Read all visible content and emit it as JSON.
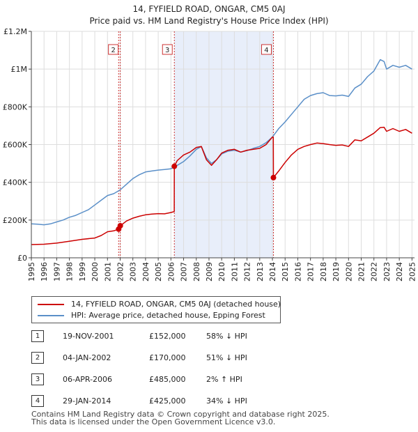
{
  "chart_data": {
    "type": "line",
    "title": "14, FYFIELD ROAD, ONGAR, CM5 0AJ",
    "subtitle": "Price paid vs. HM Land Registry's House Price Index (HPI)",
    "xlabel": "",
    "ylabel": "",
    "xlim": [
      1995,
      2025.2
    ],
    "ylim": [
      0,
      1200000
    ],
    "x_ticks": [
      "1995",
      "1996",
      "1997",
      "1998",
      "1999",
      "2000",
      "2001",
      "2002",
      "2003",
      "2004",
      "2005",
      "2006",
      "2007",
      "2008",
      "2009",
      "2010",
      "2011",
      "2012",
      "2013",
      "2014",
      "2015",
      "2016",
      "2017",
      "2018",
      "2019",
      "2020",
      "2021",
      "2022",
      "2023",
      "2024",
      "2025"
    ],
    "y_ticks": [
      {
        "value": 0,
        "label": "£0"
      },
      {
        "value": 200000,
        "label": "£200K"
      },
      {
        "value": 400000,
        "label": "£400K"
      },
      {
        "value": 600000,
        "label": "£600K"
      },
      {
        "value": 800000,
        "label": "£800K"
      },
      {
        "value": 1000000,
        "label": "£1M"
      },
      {
        "value": 1200000,
        "label": "£1.2M"
      }
    ],
    "grid": true,
    "shaded_period": [
      2006.27,
      2014.08
    ],
    "series": [
      {
        "name": "14, FYFIELD ROAD, ONGAR, CM5 0AJ (detached house)",
        "color": "#cc0000",
        "x": [
          1995.0,
          1996.0,
          1997.0,
          1998.0,
          1999.0,
          2000.0,
          2000.5,
          2001.0,
          2001.5,
          2001.88,
          2002.01,
          2002.5,
          2003.0,
          2003.5,
          2004.0,
          2004.5,
          2005.0,
          2005.5,
          2006.0,
          2006.26,
          2006.27,
          2006.5,
          2007.0,
          2007.5,
          2008.0,
          2008.4,
          2008.8,
          2009.2,
          2009.6,
          2010.0,
          2010.5,
          2011.0,
          2011.5,
          2012.0,
          2012.5,
          2013.0,
          2013.5,
          2014.0,
          2014.07,
          2014.08,
          2014.5,
          2015.0,
          2015.5,
          2016.0,
          2016.5,
          2017.0,
          2017.5,
          2018.0,
          2018.5,
          2019.0,
          2019.5,
          2020.0,
          2020.5,
          2021.0,
          2021.5,
          2022.0,
          2022.5,
          2022.8,
          2023.0,
          2023.5,
          2024.0,
          2024.5,
          2025.0
        ],
        "y": [
          70000,
          72000,
          78000,
          88000,
          98000,
          105000,
          118000,
          138000,
          143000,
          152000,
          170000,
          195000,
          210000,
          220000,
          228000,
          232000,
          234000,
          233000,
          240000,
          245000,
          485000,
          515000,
          545000,
          560000,
          585000,
          590000,
          520000,
          490000,
          520000,
          555000,
          570000,
          575000,
          560000,
          570000,
          575000,
          580000,
          600000,
          640000,
          640000,
          425000,
          460000,
          505000,
          545000,
          575000,
          590000,
          600000,
          608000,
          605000,
          600000,
          596000,
          598000,
          590000,
          625000,
          620000,
          640000,
          660000,
          690000,
          692000,
          670000,
          685000,
          670000,
          680000,
          660000
        ]
      },
      {
        "name": "HPI: Average price, detached house, Epping Forest",
        "color": "#5a8fc8",
        "x": [
          1995.0,
          1995.5,
          1996.0,
          1996.5,
          1997.0,
          1997.5,
          1998.0,
          1998.5,
          1999.0,
          1999.5,
          2000.0,
          2000.5,
          2001.0,
          2001.5,
          2002.0,
          2002.5,
          2003.0,
          2003.5,
          2004.0,
          2004.5,
          2005.0,
          2005.5,
          2006.0,
          2006.5,
          2007.0,
          2007.5,
          2008.0,
          2008.4,
          2008.8,
          2009.2,
          2009.6,
          2010.0,
          2010.5,
          2011.0,
          2011.5,
          2012.0,
          2012.5,
          2013.0,
          2013.5,
          2014.0,
          2014.5,
          2015.0,
          2015.5,
          2016.0,
          2016.5,
          2017.0,
          2017.5,
          2018.0,
          2018.5,
          2019.0,
          2019.5,
          2020.0,
          2020.5,
          2021.0,
          2021.5,
          2022.0,
          2022.5,
          2022.8,
          2023.0,
          2023.5,
          2024.0,
          2024.5,
          2025.0
        ],
        "y": [
          180000,
          178000,
          175000,
          180000,
          190000,
          200000,
          215000,
          225000,
          240000,
          255000,
          280000,
          305000,
          330000,
          340000,
          360000,
          390000,
          420000,
          440000,
          455000,
          460000,
          465000,
          468000,
          472000,
          490000,
          510000,
          540000,
          575000,
          590000,
          530000,
          500000,
          520000,
          550000,
          565000,
          570000,
          560000,
          568000,
          580000,
          590000,
          610000,
          640000,
          685000,
          720000,
          760000,
          800000,
          840000,
          860000,
          870000,
          875000,
          860000,
          858000,
          862000,
          855000,
          900000,
          920000,
          960000,
          990000,
          1050000,
          1040000,
          1000000,
          1020000,
          1010000,
          1020000,
          1000000
        ]
      }
    ],
    "sale_markers": [
      {
        "label": "1",
        "x": 2001.88,
        "y": 152000,
        "show_box": false
      },
      {
        "label": "2",
        "x": 2002.01,
        "y": 170000,
        "show_box": true
      },
      {
        "label": "3",
        "x": 2006.27,
        "y": 485000,
        "show_box": true
      },
      {
        "label": "4",
        "x": 2014.08,
        "y": 425000,
        "show_box": true
      }
    ]
  },
  "legend": [
    {
      "label": "14, FYFIELD ROAD, ONGAR, CM5 0AJ (detached house)",
      "color": "#cc0000"
    },
    {
      "label": "HPI: Average price, detached house, Epping Forest",
      "color": "#5a8fc8"
    }
  ],
  "sales": [
    {
      "num": "1",
      "date": "19-NOV-2001",
      "price": "£152,000",
      "hpi": "58% ↓ HPI"
    },
    {
      "num": "2",
      "date": "04-JAN-2002",
      "price": "£170,000",
      "hpi": "51% ↓ HPI"
    },
    {
      "num": "3",
      "date": "06-APR-2006",
      "price": "£485,000",
      "hpi": "2% ↑ HPI"
    },
    {
      "num": "4",
      "date": "29-JAN-2014",
      "price": "£425,000",
      "hpi": "34% ↓ HPI"
    }
  ],
  "footer": {
    "line1": "Contains HM Land Registry data © Crown copyright and database right 2025.",
    "line2": "This data is licensed under the Open Government Licence v3.0."
  }
}
